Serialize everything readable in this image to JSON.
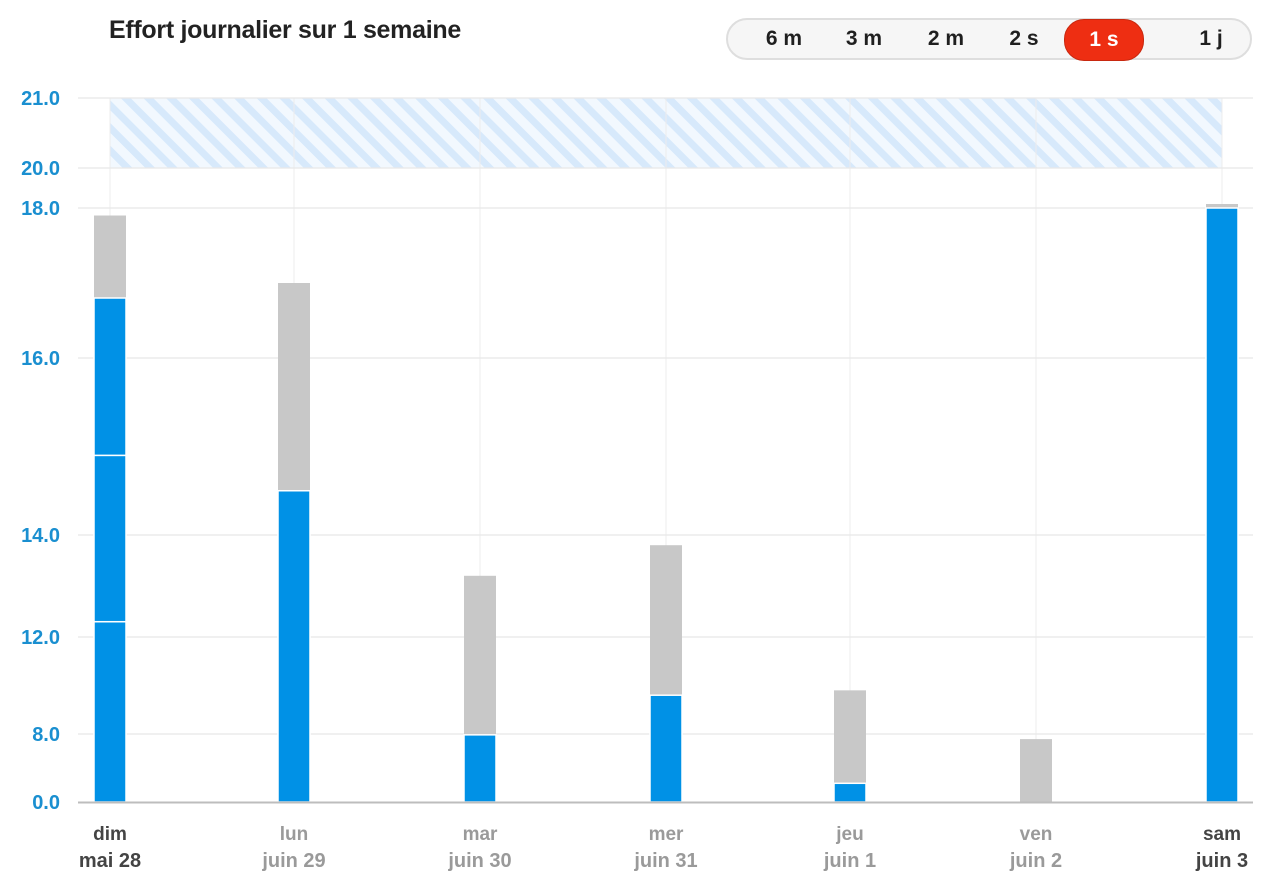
{
  "title": "Effort journalier sur 1 semaine",
  "range_selector": {
    "options": [
      "6 m",
      "3 m",
      "2 m",
      "2 s",
      "1 s",
      "1 j"
    ],
    "selected": "1 s",
    "active_color": "#ee2e12"
  },
  "colors": {
    "primary": "#0091e6",
    "secondary": "#c8c8c8",
    "axis_label": "#1a8fd0",
    "target_band": "#d7e9fb"
  },
  "chart_data": {
    "type": "bar",
    "stacked": true,
    "y_ticks": [
      "0.0",
      "8.0",
      "12.0",
      "14.0",
      "16.0",
      "18.0",
      "20.0",
      "21.0"
    ],
    "target_band": [
      20.0,
      21.0
    ],
    "categories": [
      {
        "day": "dim",
        "date": "mai 28",
        "highlight": true
      },
      {
        "day": "lun",
        "date": "juin 29",
        "highlight": false
      },
      {
        "day": "mar",
        "date": "juin 30",
        "highlight": false
      },
      {
        "day": "mer",
        "date": "juin 31",
        "highlight": false
      },
      {
        "day": "jeu",
        "date": "juin 1",
        "highlight": false
      },
      {
        "day": "ven",
        "date": "juin 2",
        "highlight": false
      },
      {
        "day": "sam",
        "date": "juin 3",
        "highlight": true
      }
    ],
    "series": [
      {
        "color": "#0091e6",
        "segments": [
          [
            12.3,
            14.9,
            16.8
          ],
          [
            14.5
          ],
          [
            7.9
          ],
          [
            9.6
          ],
          [
            2.2
          ],
          [],
          [
            18.0
          ]
        ]
      },
      {
        "color": "#c8c8c8",
        "totals": [
          17.9,
          17.0,
          13.2,
          13.8,
          9.8,
          7.4,
          18.2
        ]
      }
    ]
  }
}
